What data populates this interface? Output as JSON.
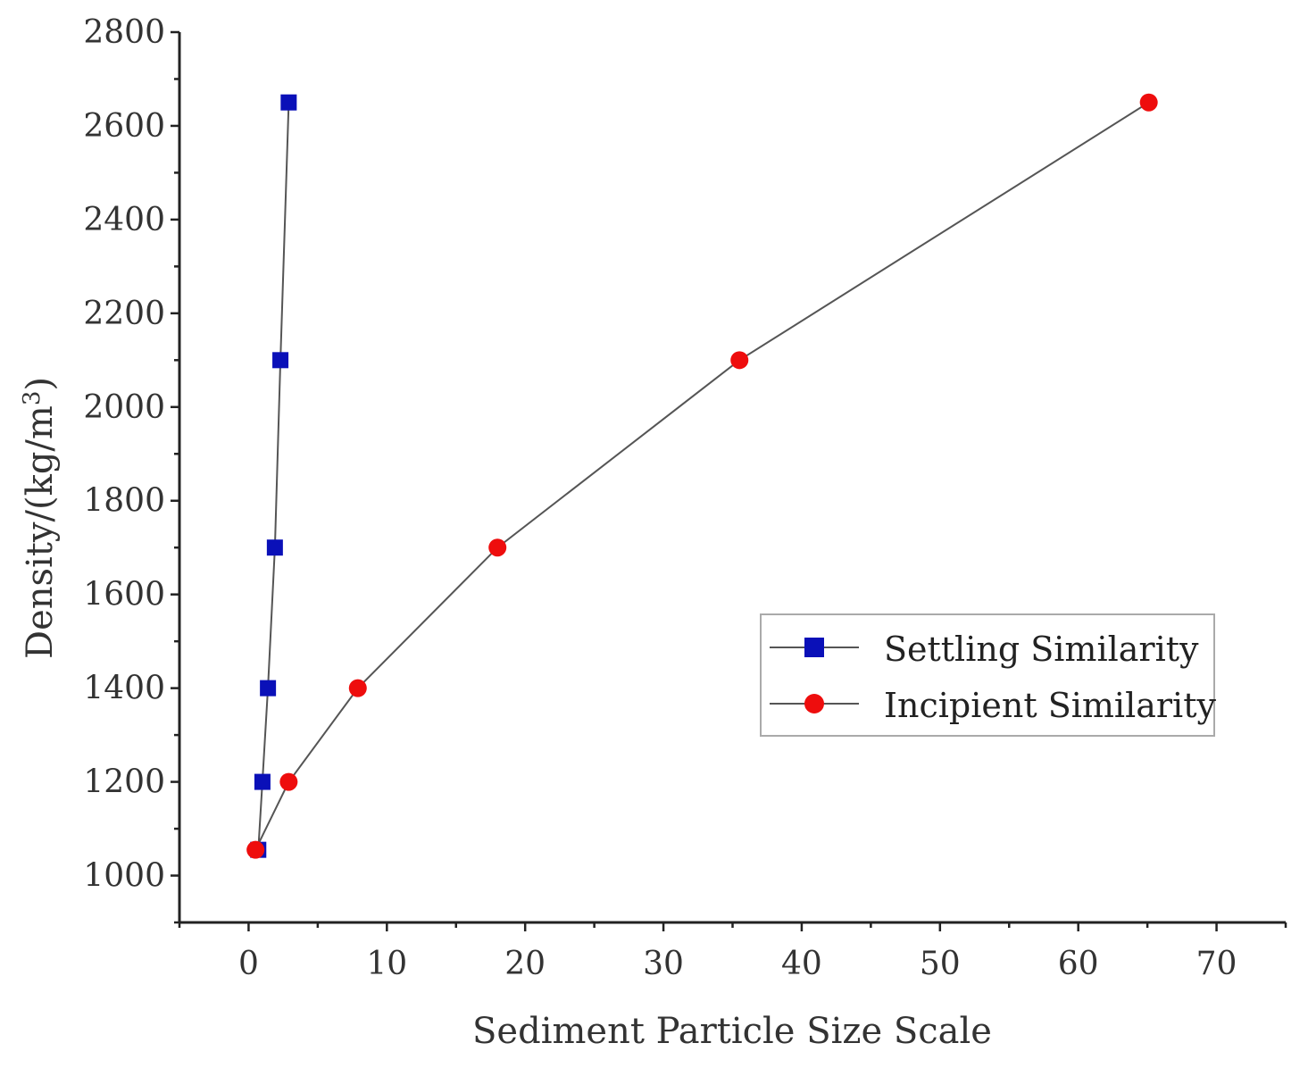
{
  "chart_data": {
    "type": "line",
    "title": "",
    "xlabel": "Sediment Particle Size Scale",
    "ylabel_main": "Density/(kg/m",
    "ylabel_sup": "3",
    "ylabel_end": ")",
    "xlim": [
      -5,
      75
    ],
    "ylim": [
      900,
      2800
    ],
    "x_ticks": [
      0,
      10,
      20,
      30,
      40,
      50,
      60,
      70
    ],
    "y_ticks": [
      1000,
      1200,
      1400,
      1600,
      1800,
      2000,
      2200,
      2400,
      2600,
      2800
    ],
    "legend_position": "right-middle",
    "grid": false,
    "series": [
      {
        "name": "Settling Similarity",
        "marker": "square",
        "color": "#0a10b8",
        "x": [
          0.7,
          1.0,
          1.4,
          1.9,
          2.3,
          2.9
        ],
        "y": [
          1055,
          1200,
          1400,
          1700,
          2100,
          2650
        ]
      },
      {
        "name": "Incipient Similarity",
        "marker": "circle",
        "color": "#ee0d0d",
        "x": [
          0.5,
          2.9,
          7.9,
          18.0,
          35.5,
          65.1
        ],
        "y": [
          1055,
          1200,
          1400,
          1700,
          2100,
          2650
        ]
      }
    ]
  }
}
